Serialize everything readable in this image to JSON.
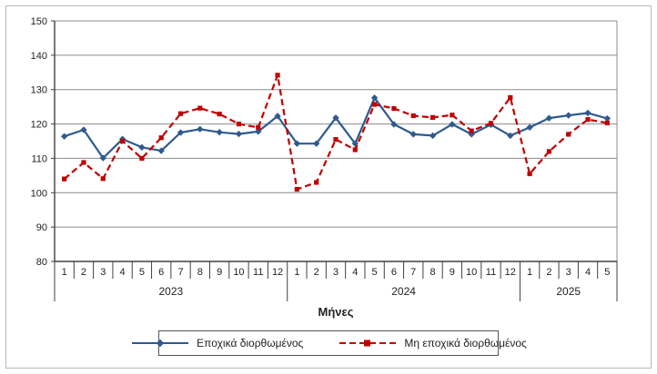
{
  "chart_data": {
    "type": "line",
    "title": "",
    "xlabel": "Μήνες",
    "ylabel": "",
    "ylim": [
      80,
      150
    ],
    "yticks": [
      80,
      90,
      100,
      110,
      120,
      130,
      140,
      150
    ],
    "grid": "horizontal-only",
    "legend_position": "bottom",
    "month_labels": [
      "1",
      "2",
      "3",
      "4",
      "5",
      "6",
      "7",
      "8",
      "9",
      "10",
      "11",
      "12"
    ],
    "x_groups": [
      {
        "year": "2023",
        "n_months": 12
      },
      {
        "year": "2024",
        "n_months": 12
      },
      {
        "year": "2025",
        "n_months": 5
      }
    ],
    "series": [
      {
        "name": "Εποχικά διορθωμένος",
        "color": "#2E5A8E",
        "line_style": "solid",
        "marker": "diamond",
        "values": [
          116.4,
          118.3,
          110.1,
          115.6,
          113.2,
          112.2,
          117.5,
          118.5,
          117.6,
          117.1,
          117.8,
          122.3,
          114.3,
          114.3,
          121.8,
          114.3,
          127.6,
          119.9,
          117.0,
          116.6,
          119.9,
          117.0,
          119.8,
          116.6,
          119.0,
          121.7,
          122.5,
          123.2,
          121.6
        ]
      },
      {
        "name": "Μη εποχικά διορθωμένος",
        "color": "#C00000",
        "line_style": "dashed",
        "marker": "square",
        "values": [
          104.0,
          108.8,
          104.1,
          115.0,
          110.0,
          116.0,
          123.0,
          124.6,
          122.9,
          120.0,
          119.0,
          134.2,
          101.0,
          103.0,
          115.5,
          112.5,
          125.7,
          124.5,
          122.4,
          121.9,
          122.6,
          118.0,
          120.2,
          127.7,
          105.5,
          112.0,
          117.0,
          121.3,
          120.3
        ]
      }
    ],
    "style": {
      "grid_color": "#8c8c8c",
      "axis_color": "#404040",
      "text_color": "#222222"
    }
  }
}
